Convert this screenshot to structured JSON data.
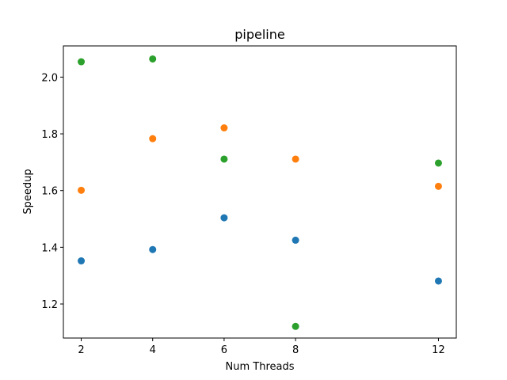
{
  "chart_data": {
    "type": "scatter",
    "title": "pipeline",
    "xlabel": "Num Threads",
    "ylabel": "Speedup",
    "x_ticks": [
      2,
      4,
      6,
      8,
      12
    ],
    "y_ticks": [
      1.2,
      1.4,
      1.6,
      1.8,
      2.0
    ],
    "y_tick_labels": [
      "1.2",
      "1.4",
      "1.6",
      "1.8",
      "2.0"
    ],
    "xlim": [
      1.5,
      12.5
    ],
    "ylim": [
      1.08,
      2.11
    ],
    "grid": false,
    "legend": "none",
    "series": [
      {
        "color": "#1f77b4",
        "x": [
          2,
          4,
          6,
          8,
          12
        ],
        "y": [
          1.352,
          1.392,
          1.504,
          1.425,
          1.281
        ]
      },
      {
        "color": "#ff7f0e",
        "x": [
          2,
          4,
          6,
          8,
          12
        ],
        "y": [
          1.601,
          1.783,
          1.821,
          1.711,
          1.615
        ]
      },
      {
        "color": "#2ca02c",
        "x": [
          2,
          4,
          6,
          8,
          12
        ],
        "y": [
          2.054,
          2.064,
          1.711,
          1.121,
          1.697
        ]
      }
    ]
  }
}
